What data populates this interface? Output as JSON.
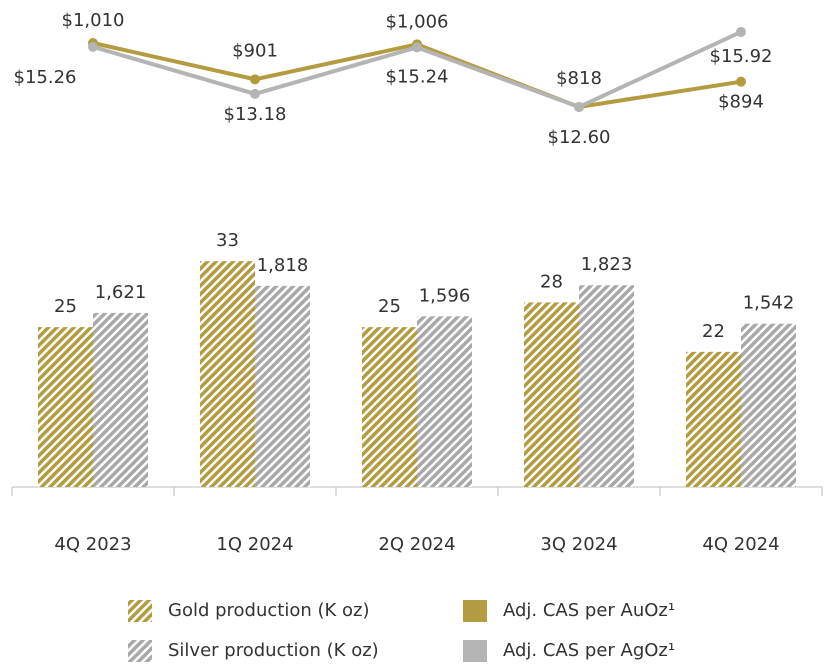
{
  "chart_data": {
    "type": "combo",
    "categories": [
      "4Q 2023",
      "1Q 2024",
      "2Q 2024",
      "3Q 2024",
      "4Q 2024"
    ],
    "ylim": [
      5.6,
      42
    ],
    "y2lim": [
      350,
      2540
    ],
    "y3lim": [
      749,
      1079
    ],
    "y4lim": [
      11.58,
      16.45
    ],
    "series": [
      {
        "name": "Gold production (K oz)",
        "type": "bar",
        "axis": "y",
        "color": "#b39b3f",
        "pattern": "hatched",
        "values": [
          25,
          33,
          25,
          28,
          22
        ]
      },
      {
        "name": "Silver production (K oz)",
        "type": "bar",
        "axis": "y2",
        "color": "#a8a8a8",
        "pattern": "hatched",
        "values": [
          1621,
          1818,
          1596,
          1823,
          1542
        ],
        "value_labels": [
          "1,621",
          "1,818",
          "1,596",
          "1,823",
          "1,542"
        ]
      },
      {
        "name": "Adj. CAS per AuOz¹",
        "type": "line",
        "axis": "y3",
        "color": "#b39b3f",
        "values": [
          1010,
          901,
          1006,
          818,
          894
        ],
        "value_labels": [
          "$1,010",
          "$901",
          "$1,006",
          "$818",
          "$894"
        ]
      },
      {
        "name": "Adj. CAS per AgOz¹",
        "type": "line",
        "axis": "y4",
        "color": "#b4b4b4",
        "values": [
          15.26,
          13.18,
          15.24,
          12.6,
          15.92
        ],
        "value_labels": [
          "$15.26",
          "$13.18",
          "$15.24",
          "$12.60",
          "$15.92"
        ]
      }
    ]
  }
}
